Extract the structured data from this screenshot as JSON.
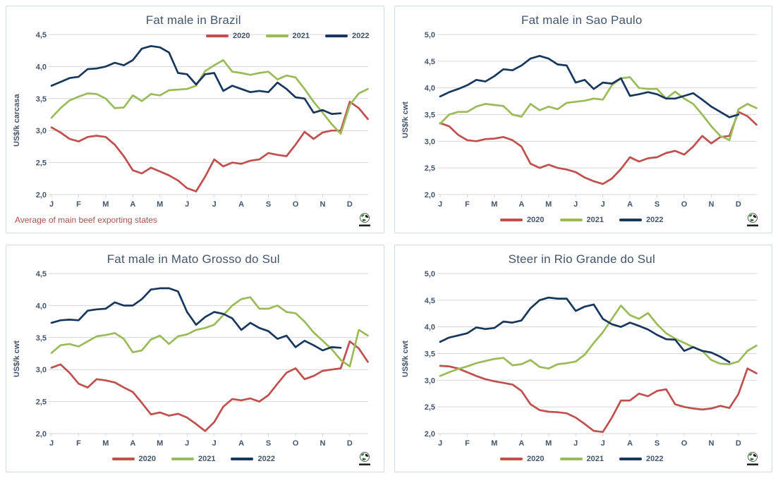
{
  "colors": {
    "red": "#C0504D",
    "green": "#9BBB59",
    "navy": "#17375D",
    "grid": "#D6D6D6",
    "tick_text": "#44546A",
    "title_text": "#44546A",
    "panel_border": "#D3D9E0",
    "footnote_text": "#A3564B"
  },
  "icons": {
    "logo": "globe-icon"
  },
  "months": [
    "J",
    "F",
    "M",
    "A",
    "M",
    "J",
    "J",
    "A",
    "S",
    "O",
    "N",
    "D"
  ],
  "chart_data": [
    {
      "type": "line",
      "title": "Fat male in Brazil",
      "ylabel": "US$/k carcasa",
      "ymin": 2.0,
      "ymax": 4.5,
      "ystep": 0.5,
      "grid": true,
      "legend_position": "top-right",
      "footnote": "Average  of main beef exporting states",
      "categories": [
        "J",
        "F",
        "M",
        "A",
        "M",
        "J",
        "J",
        "A",
        "S",
        "O",
        "N",
        "D"
      ],
      "series": [
        {
          "name": "2020",
          "color": "#C0504D",
          "values": [
            3.05,
            2.97,
            2.87,
            2.83,
            2.9,
            2.92,
            2.9,
            2.78,
            2.6,
            2.38,
            2.33,
            2.42,
            2.36,
            2.3,
            2.22,
            2.1,
            2.05,
            2.28,
            2.55,
            2.44,
            2.5,
            2.48,
            2.53,
            2.55,
            2.65,
            2.62,
            2.6,
            2.78,
            2.98,
            2.87,
            2.97,
            3.0,
            3.0,
            3.45,
            3.35,
            3.18
          ]
        },
        {
          "name": "2021",
          "color": "#9BBB59",
          "values": [
            3.2,
            3.35,
            3.47,
            3.53,
            3.58,
            3.57,
            3.5,
            3.35,
            3.36,
            3.55,
            3.46,
            3.57,
            3.55,
            3.63,
            3.64,
            3.65,
            3.7,
            3.93,
            4.02,
            4.1,
            3.92,
            3.9,
            3.87,
            3.9,
            3.92,
            3.8,
            3.86,
            3.83,
            3.65,
            3.45,
            3.28,
            3.1,
            2.95,
            3.4,
            3.58,
            3.65
          ]
        },
        {
          "name": "2022",
          "color": "#17375D",
          "values": [
            3.7,
            3.76,
            3.82,
            3.84,
            3.96,
            3.97,
            4.0,
            4.06,
            4.02,
            4.1,
            4.28,
            4.32,
            4.3,
            4.22,
            3.9,
            3.88,
            3.72,
            3.88,
            3.9,
            3.62,
            3.7,
            3.65,
            3.6,
            3.62,
            3.6,
            3.75,
            3.65,
            3.52,
            3.5,
            3.28,
            3.32,
            3.26,
            3.27
          ]
        }
      ]
    },
    {
      "type": "line",
      "title": "Fat male in Sao Paulo",
      "ylabel": "US$/k cwt",
      "ymin": 2.0,
      "ymax": 5.0,
      "ystep": 0.5,
      "grid": true,
      "legend_position": "bottom-center",
      "categories": [
        "J",
        "F",
        "M",
        "A",
        "M",
        "J",
        "J",
        "A",
        "S",
        "O",
        "N",
        "D"
      ],
      "series": [
        {
          "name": "2020",
          "color": "#C0504D",
          "values": [
            3.34,
            3.28,
            3.12,
            3.02,
            3.0,
            3.04,
            3.05,
            3.08,
            3.02,
            2.9,
            2.58,
            2.5,
            2.56,
            2.5,
            2.47,
            2.42,
            2.32,
            2.25,
            2.2,
            2.3,
            2.48,
            2.7,
            2.62,
            2.68,
            2.7,
            2.78,
            2.82,
            2.75,
            2.9,
            3.1,
            2.96,
            3.08,
            3.1,
            3.55,
            3.47,
            3.31
          ]
        },
        {
          "name": "2021",
          "color": "#9BBB59",
          "values": [
            3.33,
            3.5,
            3.55,
            3.55,
            3.65,
            3.7,
            3.68,
            3.66,
            3.5,
            3.46,
            3.7,
            3.58,
            3.65,
            3.6,
            3.72,
            3.74,
            3.76,
            3.8,
            3.78,
            4.05,
            4.18,
            4.2,
            4.0,
            3.98,
            3.98,
            3.8,
            3.93,
            3.8,
            3.7,
            3.5,
            3.28,
            3.1,
            3.02,
            3.6,
            3.7,
            3.62
          ]
        },
        {
          "name": "2022",
          "color": "#17375D",
          "values": [
            3.84,
            3.92,
            3.98,
            4.05,
            4.15,
            4.12,
            4.22,
            4.35,
            4.33,
            4.42,
            4.55,
            4.6,
            4.55,
            4.44,
            4.42,
            4.1,
            4.15,
            3.98,
            4.1,
            4.08,
            4.18,
            3.85,
            3.88,
            3.92,
            3.88,
            3.8,
            3.8,
            3.85,
            3.9,
            3.78,
            3.65,
            3.55,
            3.45,
            3.5
          ]
        }
      ]
    },
    {
      "type": "line",
      "title": "Fat male in Mato Grosso do Sul",
      "ylabel": "US$/k cwt",
      "ymin": 2.0,
      "ymax": 4.5,
      "ystep": 0.5,
      "grid": true,
      "legend_position": "bottom-center",
      "categories": [
        "J",
        "F",
        "M",
        "A",
        "M",
        "J",
        "J",
        "A",
        "S",
        "O",
        "N",
        "D"
      ],
      "series": [
        {
          "name": "2020",
          "color": "#C0504D",
          "values": [
            3.03,
            3.08,
            2.95,
            2.78,
            2.72,
            2.85,
            2.83,
            2.8,
            2.72,
            2.65,
            2.48,
            2.3,
            2.33,
            2.28,
            2.31,
            2.25,
            2.15,
            2.04,
            2.18,
            2.42,
            2.54,
            2.52,
            2.55,
            2.5,
            2.6,
            2.78,
            2.95,
            3.02,
            2.85,
            2.9,
            2.98,
            3.0,
            3.02,
            3.44,
            3.33,
            3.12
          ]
        },
        {
          "name": "2021",
          "color": "#9BBB59",
          "values": [
            3.26,
            3.38,
            3.4,
            3.36,
            3.44,
            3.52,
            3.54,
            3.57,
            3.48,
            3.27,
            3.3,
            3.47,
            3.53,
            3.4,
            3.52,
            3.55,
            3.62,
            3.65,
            3.7,
            3.85,
            4.0,
            4.1,
            4.13,
            3.95,
            3.95,
            4.0,
            3.9,
            3.88,
            3.75,
            3.58,
            3.45,
            3.32,
            3.15,
            3.05,
            3.62,
            3.53
          ]
        },
        {
          "name": "2022",
          "color": "#17375D",
          "values": [
            3.73,
            3.77,
            3.78,
            3.77,
            3.92,
            3.94,
            3.95,
            4.05,
            4.0,
            4.0,
            4.1,
            4.25,
            4.27,
            4.27,
            4.22,
            3.9,
            3.7,
            3.82,
            3.9,
            3.87,
            3.8,
            3.62,
            3.73,
            3.65,
            3.6,
            3.48,
            3.53,
            3.35,
            3.45,
            3.38,
            3.3,
            3.35,
            3.34
          ]
        }
      ]
    },
    {
      "type": "line",
      "title": "Steer  in Rio Grande do Sul",
      "ylabel": "US$/k cwt",
      "ymin": 2.0,
      "ymax": 5.0,
      "ystep": 0.5,
      "grid": true,
      "legend_position": "bottom-center",
      "categories": [
        "J",
        "F",
        "M",
        "A",
        "M",
        "J",
        "J",
        "A",
        "S",
        "O",
        "N",
        "D"
      ],
      "series": [
        {
          "name": "2020",
          "color": "#C0504D",
          "values": [
            3.27,
            3.26,
            3.22,
            3.15,
            3.08,
            3.02,
            2.98,
            2.95,
            2.92,
            2.8,
            2.55,
            2.44,
            2.41,
            2.4,
            2.38,
            2.3,
            2.18,
            2.05,
            2.03,
            2.3,
            2.62,
            2.62,
            2.75,
            2.7,
            2.8,
            2.83,
            2.55,
            2.5,
            2.47,
            2.45,
            2.47,
            2.52,
            2.48,
            2.74,
            3.22,
            3.13
          ]
        },
        {
          "name": "2021",
          "color": "#9BBB59",
          "values": [
            3.08,
            3.15,
            3.21,
            3.26,
            3.32,
            3.36,
            3.4,
            3.42,
            3.28,
            3.3,
            3.38,
            3.25,
            3.22,
            3.3,
            3.32,
            3.35,
            3.48,
            3.7,
            3.9,
            4.15,
            4.4,
            4.22,
            4.15,
            4.26,
            4.05,
            3.88,
            3.78,
            3.7,
            3.62,
            3.55,
            3.38,
            3.31,
            3.3,
            3.35,
            3.55,
            3.65
          ]
        },
        {
          "name": "2022",
          "color": "#17375D",
          "values": [
            3.72,
            3.8,
            3.84,
            3.88,
            3.99,
            3.96,
            3.98,
            4.1,
            4.08,
            4.12,
            4.35,
            4.5,
            4.55,
            4.53,
            4.53,
            4.3,
            4.38,
            4.42,
            4.15,
            4.05,
            4.0,
            4.08,
            4.02,
            3.95,
            3.85,
            3.77,
            3.76,
            3.55,
            3.62,
            3.55,
            3.52,
            3.44,
            3.34
          ]
        }
      ]
    }
  ]
}
